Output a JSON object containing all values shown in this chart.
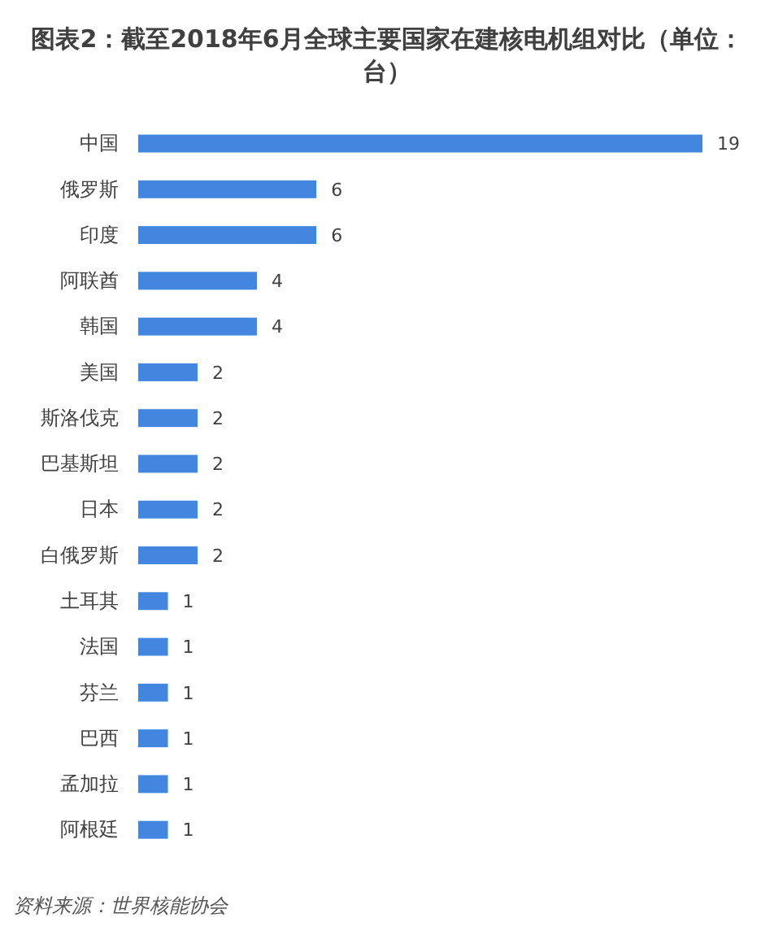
{
  "chart_data": {
    "type": "bar",
    "orientation": "horizontal",
    "title": "图表2：截至2018年6月全球主要国家在建核电机组对比（单位：台）",
    "categories": [
      "中国",
      "俄罗斯",
      "印度",
      "阿联酋",
      "韩国",
      "美国",
      "斯洛伐克",
      "巴基斯坦",
      "日本",
      "白俄罗斯",
      "土耳其",
      "法国",
      "芬兰",
      "巴西",
      "孟加拉",
      "阿根廷"
    ],
    "values": [
      19,
      6,
      6,
      4,
      4,
      2,
      2,
      2,
      2,
      2,
      1,
      1,
      1,
      1,
      1,
      1
    ],
    "color": "#4286e0",
    "data_labels": true,
    "annotations": [
      "资料来源：世界核能协会"
    ]
  }
}
